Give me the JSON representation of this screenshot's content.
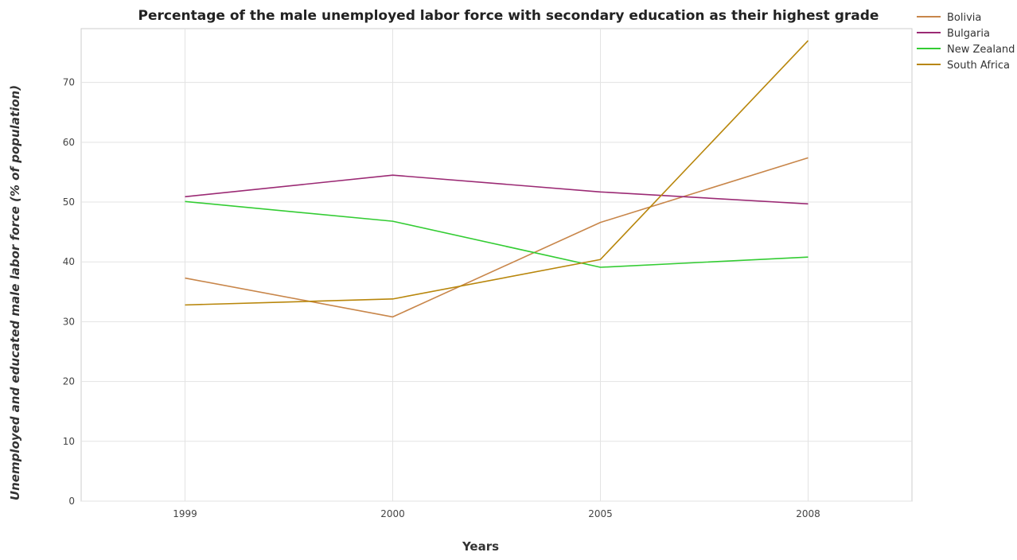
{
  "chart_data": {
    "type": "line",
    "title": "Percentage of the male unemployed labor force with secondary education as their highest grade",
    "xlabel": "Years",
    "ylabel": "Unemployed and educated male labor force (% of population)",
    "categories": [
      "1999",
      "2000",
      "2005",
      "2008"
    ],
    "ylim": [
      0,
      79
    ],
    "yticks": [
      0,
      10,
      20,
      30,
      40,
      50,
      60,
      70
    ],
    "grid": true,
    "legend_position": "top-right",
    "series": [
      {
        "name": "Bolivia",
        "color": "#c8864a",
        "values": [
          37.3,
          30.8,
          46.6,
          57.4
        ]
      },
      {
        "name": "Bulgaria",
        "color": "#9b2a74",
        "values": [
          50.9,
          54.5,
          51.7,
          49.7
        ]
      },
      {
        "name": "New Zealand",
        "color": "#33cc33",
        "values": [
          50.1,
          46.8,
          39.1,
          40.8
        ]
      },
      {
        "name": "South Africa",
        "color": "#b8860b",
        "values": [
          32.8,
          33.8,
          40.4,
          77.0
        ]
      }
    ]
  }
}
